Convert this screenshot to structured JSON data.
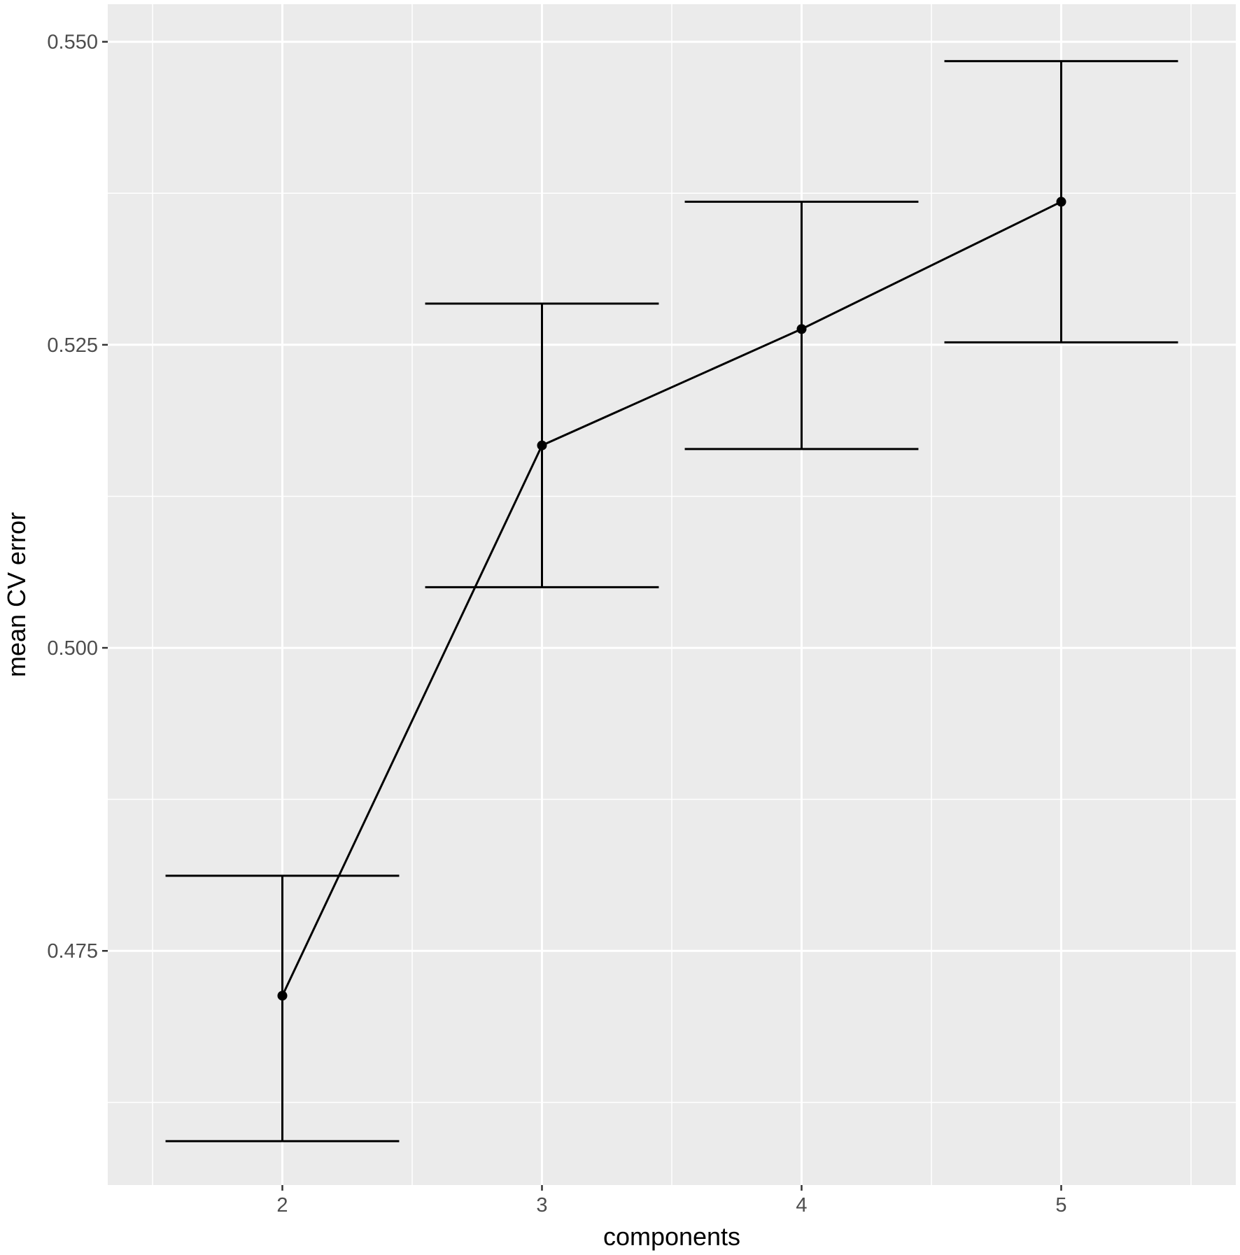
{
  "chart_data": {
    "type": "line",
    "title": "",
    "xlabel": "components",
    "ylabel": "mean CV error",
    "x": [
      2,
      3,
      4,
      5
    ],
    "y": [
      0.4713,
      0.5167,
      0.5263,
      0.5368
    ],
    "error_bars": {
      "lower": [
        0.4593,
        0.505,
        0.5164,
        0.5252
      ],
      "upper": [
        0.4812,
        0.5284,
        0.5368,
        0.5484
      ]
    },
    "xlim": [
      1.5,
      5.5
    ],
    "ylim": [
      0.4557,
      0.5531
    ],
    "x_ticks": [
      "2",
      "3",
      "4",
      "5"
    ],
    "y_ticks": [
      "0.475",
      "0.500",
      "0.525",
      "0.550"
    ],
    "grid": true,
    "legend": "none",
    "colors": {
      "panel_background": "#ebebeb",
      "grid": "#ffffff",
      "series": "#000000"
    }
  }
}
